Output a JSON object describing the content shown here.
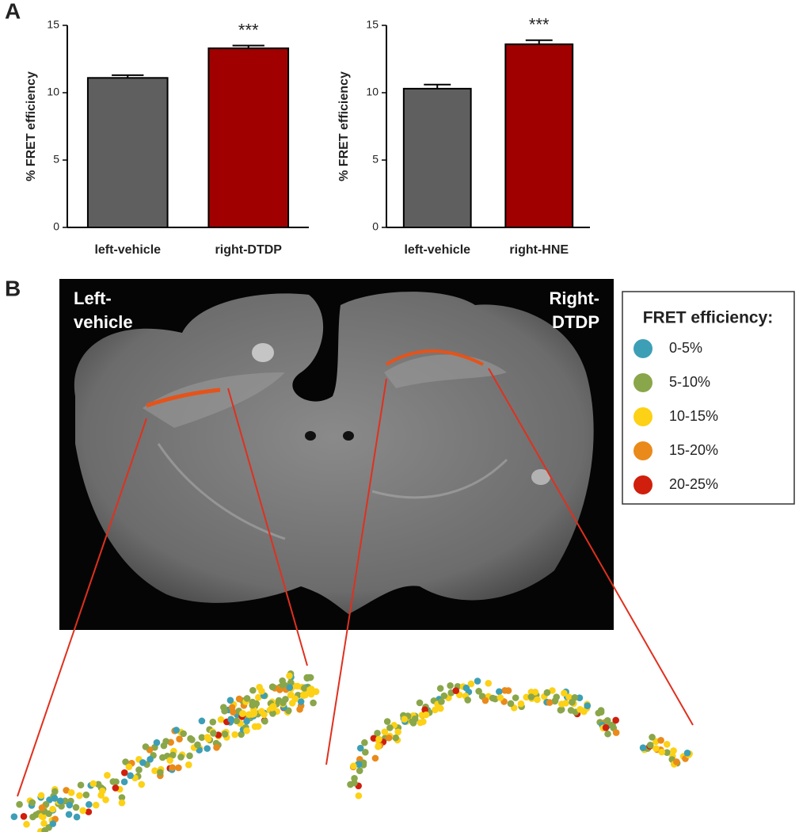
{
  "panel_labels": [
    "A",
    "B"
  ],
  "chart_data": [
    {
      "type": "bar",
      "ylabel": "% FRET efficiency",
      "categories": [
        "left-vehicle",
        "right-DTDP"
      ],
      "values": [
        11.1,
        13.3
      ],
      "errors": [
        0.2,
        0.2
      ],
      "colors": [
        "#5f5f5f",
        "#a00000"
      ],
      "significance": [
        null,
        "***"
      ],
      "ylim": [
        0,
        15
      ],
      "yticks": [
        0,
        5,
        10,
        15
      ]
    },
    {
      "type": "bar",
      "ylabel": "% FRET efficiency",
      "categories": [
        "left-vehicle",
        "right-HNE"
      ],
      "values": [
        10.3,
        13.6
      ],
      "errors": [
        0.3,
        0.3
      ],
      "colors": [
        "#5f5f5f",
        "#a00000"
      ],
      "significance": [
        null,
        "***"
      ],
      "ylim": [
        0,
        15
      ],
      "yticks": [
        0,
        5,
        10,
        15
      ]
    }
  ],
  "image_labels": [
    [
      "Left-",
      "vehicle"
    ],
    [
      "Right-",
      "DTDP"
    ]
  ],
  "legend": {
    "title": "FRET efficiency:",
    "entries": [
      {
        "label": "0-5%",
        "color": "#3d9fb6"
      },
      {
        "label": "5-10%",
        "color": "#8aa64a"
      },
      {
        "label": "10-15%",
        "color": "#fcd116"
      },
      {
        "label": "15-20%",
        "color": "#ea8a1a"
      },
      {
        "label": "20-25%",
        "color": "#d01f0c"
      }
    ]
  }
}
